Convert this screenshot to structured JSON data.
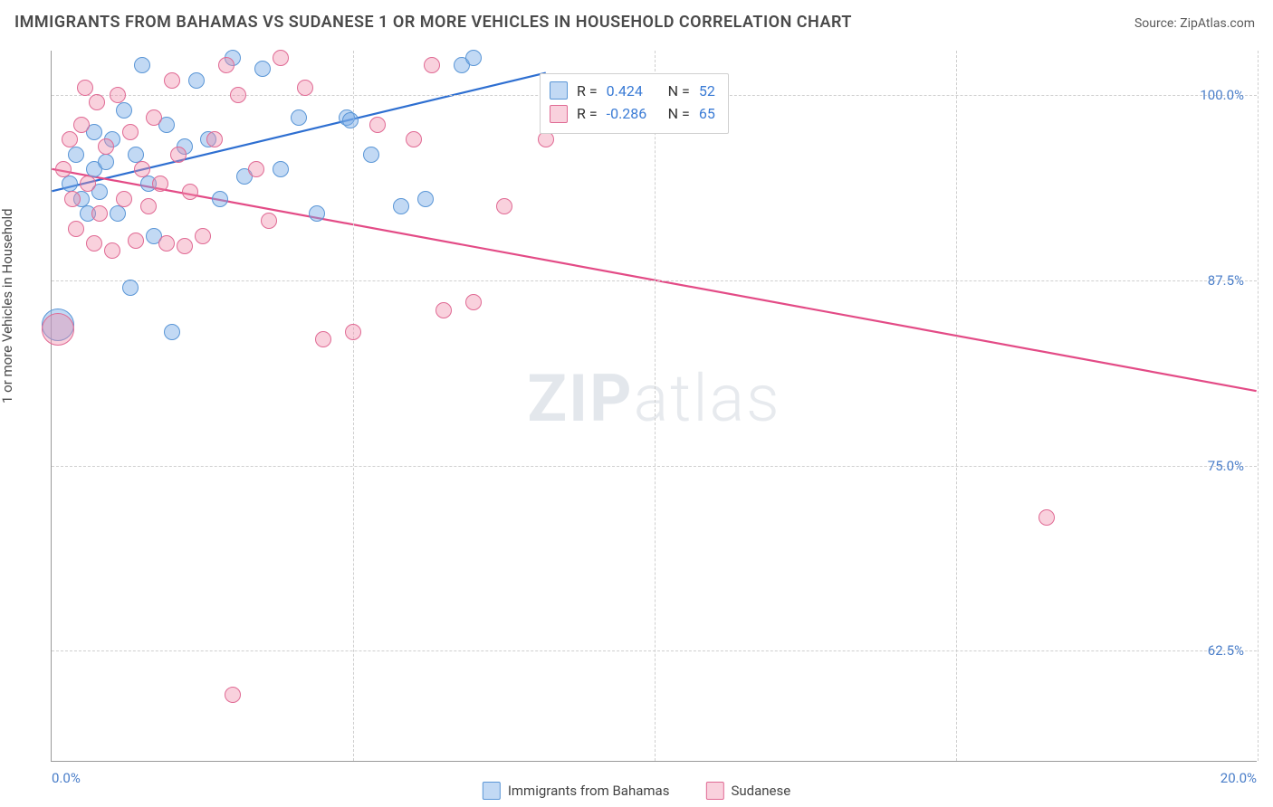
{
  "title": "IMMIGRANTS FROM BAHAMAS VS SUDANESE 1 OR MORE VEHICLES IN HOUSEHOLD CORRELATION CHART",
  "source_label": "Source: ",
  "source_name": "ZipAtlas.com",
  "watermark_a": "ZIP",
  "watermark_b": "atlas",
  "yaxis_label": "1 or more Vehicles in Household",
  "chart": {
    "type": "scatter",
    "xlim": [
      0,
      20
    ],
    "ylim": [
      55,
      103
    ],
    "xticks": [
      0,
      5,
      10,
      15,
      20
    ],
    "xticklabels": [
      "0.0%",
      "",
      "",
      "",
      "20.0%"
    ],
    "yticks": [
      62.5,
      75,
      87.5,
      100
    ],
    "yticklabels": [
      "62.5%",
      "75.0%",
      "87.5%",
      "100.0%"
    ],
    "background_color": "#ffffff",
    "grid_color": "#cfcfcf",
    "axis_color": "#9a9a9a",
    "tick_label_color": "#4a7ec9",
    "tick_fontsize": 15,
    "title_fontsize": 18,
    "title_color": "#4a4a4a",
    "point_radius": 9,
    "point_radius_large": 18,
    "series": [
      {
        "name": "Immigrants from Bahamas",
        "fill": "rgba(120,170,230,0.45)",
        "stroke": "#5a96d6",
        "line_color": "#2e6fd1",
        "line_width": 2.2,
        "regression": {
          "x1": 0,
          "y1": 93.5,
          "x2": 8.2,
          "y2": 101.5
        },
        "R": "0.424",
        "N": "52",
        "points": [
          {
            "x": 0.1,
            "y": 84.5,
            "r": 18
          },
          {
            "x": 0.3,
            "y": 94
          },
          {
            "x": 0.4,
            "y": 96
          },
          {
            "x": 0.5,
            "y": 93
          },
          {
            "x": 0.6,
            "y": 92
          },
          {
            "x": 0.7,
            "y": 95
          },
          {
            "x": 0.7,
            "y": 97.5
          },
          {
            "x": 0.8,
            "y": 93.5
          },
          {
            "x": 0.9,
            "y": 95.5
          },
          {
            "x": 1.0,
            "y": 97
          },
          {
            "x": 1.1,
            "y": 92
          },
          {
            "x": 1.2,
            "y": 99
          },
          {
            "x": 1.3,
            "y": 87
          },
          {
            "x": 1.4,
            "y": 96
          },
          {
            "x": 1.5,
            "y": 102
          },
          {
            "x": 1.6,
            "y": 94
          },
          {
            "x": 1.7,
            "y": 90.5
          },
          {
            "x": 1.9,
            "y": 98
          },
          {
            "x": 2.0,
            "y": 84
          },
          {
            "x": 2.2,
            "y": 96.5
          },
          {
            "x": 2.4,
            "y": 101
          },
          {
            "x": 2.6,
            "y": 97
          },
          {
            "x": 2.8,
            "y": 93
          },
          {
            "x": 3.0,
            "y": 102.5
          },
          {
            "x": 3.2,
            "y": 94.5
          },
          {
            "x": 3.5,
            "y": 101.8
          },
          {
            "x": 3.8,
            "y": 95
          },
          {
            "x": 4.1,
            "y": 98.5
          },
          {
            "x": 4.4,
            "y": 92
          },
          {
            "x": 4.9,
            "y": 98.5
          },
          {
            "x": 4.95,
            "y": 98.3
          },
          {
            "x": 5.3,
            "y": 96
          },
          {
            "x": 5.8,
            "y": 92.5
          },
          {
            "x": 6.2,
            "y": 93
          },
          {
            "x": 6.8,
            "y": 102
          },
          {
            "x": 7.0,
            "y": 102.5
          }
        ]
      },
      {
        "name": "Sudanese",
        "fill": "rgba(240,140,170,0.40)",
        "stroke": "#e06a94",
        "line_color": "#e34b86",
        "line_width": 2.2,
        "regression": {
          "x1": 0,
          "y1": 95.0,
          "x2": 20,
          "y2": 80.0
        },
        "R": "-0.286",
        "N": "65",
        "points": [
          {
            "x": 0.1,
            "y": 84.2,
            "r": 18
          },
          {
            "x": 0.2,
            "y": 95
          },
          {
            "x": 0.3,
            "y": 97
          },
          {
            "x": 0.35,
            "y": 93
          },
          {
            "x": 0.4,
            "y": 91
          },
          {
            "x": 0.5,
            "y": 98
          },
          {
            "x": 0.55,
            "y": 100.5
          },
          {
            "x": 0.6,
            "y": 94
          },
          {
            "x": 0.7,
            "y": 90
          },
          {
            "x": 0.75,
            "y": 99.5
          },
          {
            "x": 0.8,
            "y": 92
          },
          {
            "x": 0.9,
            "y": 96.5
          },
          {
            "x": 1.0,
            "y": 89.5
          },
          {
            "x": 1.1,
            "y": 100
          },
          {
            "x": 1.2,
            "y": 93
          },
          {
            "x": 1.3,
            "y": 97.5
          },
          {
            "x": 1.4,
            "y": 90.2
          },
          {
            "x": 1.5,
            "y": 95
          },
          {
            "x": 1.6,
            "y": 92.5
          },
          {
            "x": 1.7,
            "y": 98.5
          },
          {
            "x": 1.8,
            "y": 94
          },
          {
            "x": 1.9,
            "y": 90
          },
          {
            "x": 2.0,
            "y": 101
          },
          {
            "x": 2.1,
            "y": 96
          },
          {
            "x": 2.2,
            "y": 89.8
          },
          {
            "x": 2.3,
            "y": 93.5
          },
          {
            "x": 2.5,
            "y": 90.5
          },
          {
            "x": 2.7,
            "y": 97
          },
          {
            "x": 2.9,
            "y": 102
          },
          {
            "x": 3.0,
            "y": 59.5
          },
          {
            "x": 3.1,
            "y": 100
          },
          {
            "x": 3.4,
            "y": 95
          },
          {
            "x": 3.6,
            "y": 91.5
          },
          {
            "x": 3.8,
            "y": 102.5
          },
          {
            "x": 4.2,
            "y": 100.5
          },
          {
            "x": 4.5,
            "y": 83.5
          },
          {
            "x": 5.0,
            "y": 84
          },
          {
            "x": 5.4,
            "y": 98
          },
          {
            "x": 6.0,
            "y": 97
          },
          {
            "x": 6.3,
            "y": 102
          },
          {
            "x": 6.5,
            "y": 85.5
          },
          {
            "x": 7.0,
            "y": 86
          },
          {
            "x": 7.5,
            "y": 92.5
          },
          {
            "x": 8.2,
            "y": 97
          },
          {
            "x": 16.5,
            "y": 71.5
          }
        ]
      }
    ],
    "stat_box": {
      "left_pct": 40.5,
      "top_y": 101.5
    },
    "legend_labels": [
      "Immigrants from Bahamas",
      "Sudanese"
    ]
  },
  "labels": {
    "R": "R =",
    "N": "N ="
  }
}
